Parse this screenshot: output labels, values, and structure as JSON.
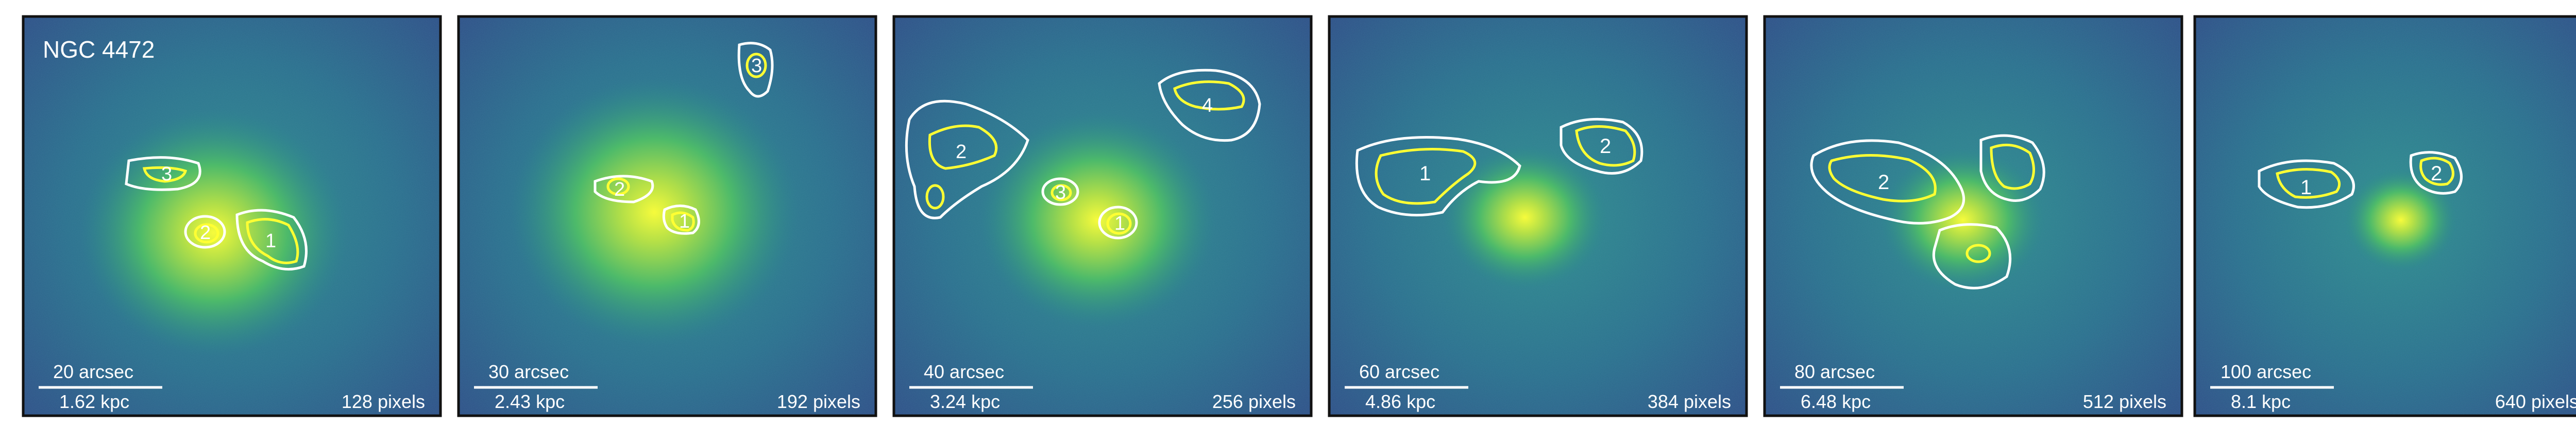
{
  "figure": {
    "galaxy_label": "NGC 4472",
    "panels": [
      {
        "id": "p1",
        "arcsec": "20 arcsec",
        "kpc": "1.62 kpc",
        "pixels": "128 pixels",
        "regions": [
          "1",
          "2",
          "3"
        ]
      },
      {
        "id": "p2",
        "arcsec": "30 arcsec",
        "kpc": "2.43 kpc",
        "pixels": "192 pixels",
        "regions": [
          "1",
          "2",
          "3"
        ]
      },
      {
        "id": "p3",
        "arcsec": "40 arcsec",
        "kpc": "3.24 kpc",
        "pixels": "256 pixels",
        "regions": [
          "1",
          "2",
          "3",
          "4"
        ]
      },
      {
        "id": "p4",
        "arcsec": "60 arcsec",
        "kpc": "4.86 kpc",
        "pixels": "384 pixels",
        "regions": [
          "1",
          "2"
        ]
      },
      {
        "id": "p5",
        "arcsec": "80 arcsec",
        "kpc": "6.48 kpc",
        "pixels": "512 pixels",
        "regions": [
          "2"
        ]
      },
      {
        "id": "p6",
        "arcsec": "100 arcsec",
        "kpc": "8.1 kpc",
        "pixels": "640 pixels",
        "regions": [
          "1",
          "2"
        ]
      }
    ],
    "colors": {
      "background_dark": "#2d3f7a",
      "background_mid": "#2a7f8e",
      "core_green": "#5bc862",
      "core_yellow": "#e8f53a",
      "contour_white": "#ffffff",
      "contour_yellow": "#ffff33",
      "frame": "#111111"
    }
  }
}
